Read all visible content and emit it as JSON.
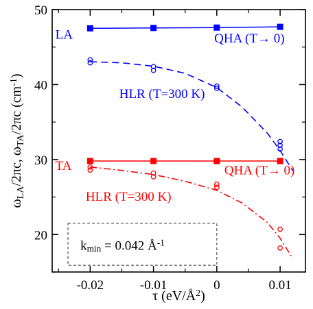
{
  "chart_data": {
    "type": "scatter",
    "xlabel": "τ (eV/Å²)",
    "ylabel": "ω_LA/2πc, ω_TA/2πc (cm⁻¹)",
    "xlim": [
      -0.026,
      0.014
    ],
    "ylim": [
      15,
      50
    ],
    "x_ticks": [
      -0.02,
      -0.01,
      0,
      0.01
    ],
    "x_tick_labels": [
      "-0.02",
      "-0.01",
      "0",
      "0.01"
    ],
    "y_ticks": [
      20,
      30,
      40,
      50
    ],
    "y_tick_labels": [
      "20",
      "30",
      "40",
      "50"
    ],
    "colors": {
      "la": "#0000ff",
      "ta": "#ff0000"
    },
    "series": [
      {
        "id": "la_qha",
        "kind": "line-square",
        "color": "#0000ff",
        "x": [
          -0.02,
          -0.01,
          0,
          0.01
        ],
        "y": [
          47.5,
          47.55,
          47.6,
          47.7
        ]
      },
      {
        "id": "la_hlr_points",
        "kind": "open-circle",
        "color": "#0000ff",
        "x": [
          -0.02,
          -0.02,
          -0.01,
          -0.01,
          0,
          0,
          0.01,
          0.01,
          0.01
        ],
        "y": [
          43.3,
          42.9,
          42.4,
          41.9,
          39.8,
          39.5,
          32.4,
          31.9,
          31.4
        ]
      },
      {
        "id": "la_hlr_fit",
        "kind": "dashed",
        "color": "#0000ff",
        "x": [
          -0.02,
          -0.015,
          -0.01,
          -0.005,
          0,
          0.004,
          0.008,
          0.01,
          0.012
        ],
        "y": [
          43.05,
          42.9,
          42.45,
          41.5,
          39.6,
          37.0,
          33.5,
          31.2,
          28.5
        ]
      },
      {
        "id": "ta_qha",
        "kind": "line-square",
        "color": "#ff0000",
        "x": [
          -0.02,
          -0.01,
          0,
          0.01
        ],
        "y": [
          29.8,
          29.8,
          29.8,
          29.8
        ]
      },
      {
        "id": "ta_hlr_points",
        "kind": "open-circle",
        "color": "#ff0000",
        "x": [
          -0.02,
          -0.02,
          -0.01,
          -0.01,
          0,
          0,
          0.01,
          0.01
        ],
        "y": [
          29.0,
          28.6,
          28.2,
          27.7,
          26.7,
          26.3,
          20.7,
          18.2
        ]
      },
      {
        "id": "ta_hlr_fit",
        "kind": "dashdot",
        "color": "#ff0000",
        "x": [
          -0.02,
          -0.015,
          -0.01,
          -0.005,
          0,
          0.004,
          0.008,
          0.01,
          0.012
        ],
        "y": [
          29.0,
          28.55,
          28.0,
          27.1,
          25.9,
          24.2,
          21.6,
          19.5,
          16.8
        ]
      }
    ],
    "annotations": [
      {
        "id": "la",
        "text": "LA",
        "x": -0.0255,
        "y": 46.1,
        "color": "#0000ff"
      },
      {
        "id": "qha_la",
        "text": "QHA  (T→ 0)",
        "x": -0.0004,
        "y": 45.6,
        "color": "#0000ff"
      },
      {
        "id": "hlr_la",
        "text": "HLR (T=300 K)",
        "x": -0.0154,
        "y": 38.2,
        "color": "#0000ff"
      },
      {
        "id": "ta",
        "text": "TA",
        "x": -0.0255,
        "y": 28.6,
        "color": "#ff0000"
      },
      {
        "id": "qha_ta",
        "text": "QHA  (T→ 0)",
        "x": 0.0012,
        "y": 28.0,
        "color": "#ff0000"
      },
      {
        "id": "hlr_ta",
        "text": "HLR (T=300 K)",
        "x": -0.0207,
        "y": 24.5,
        "color": "#ff0000"
      }
    ],
    "kmin_box_label": "k_min = 0.042 Å⁻¹"
  }
}
